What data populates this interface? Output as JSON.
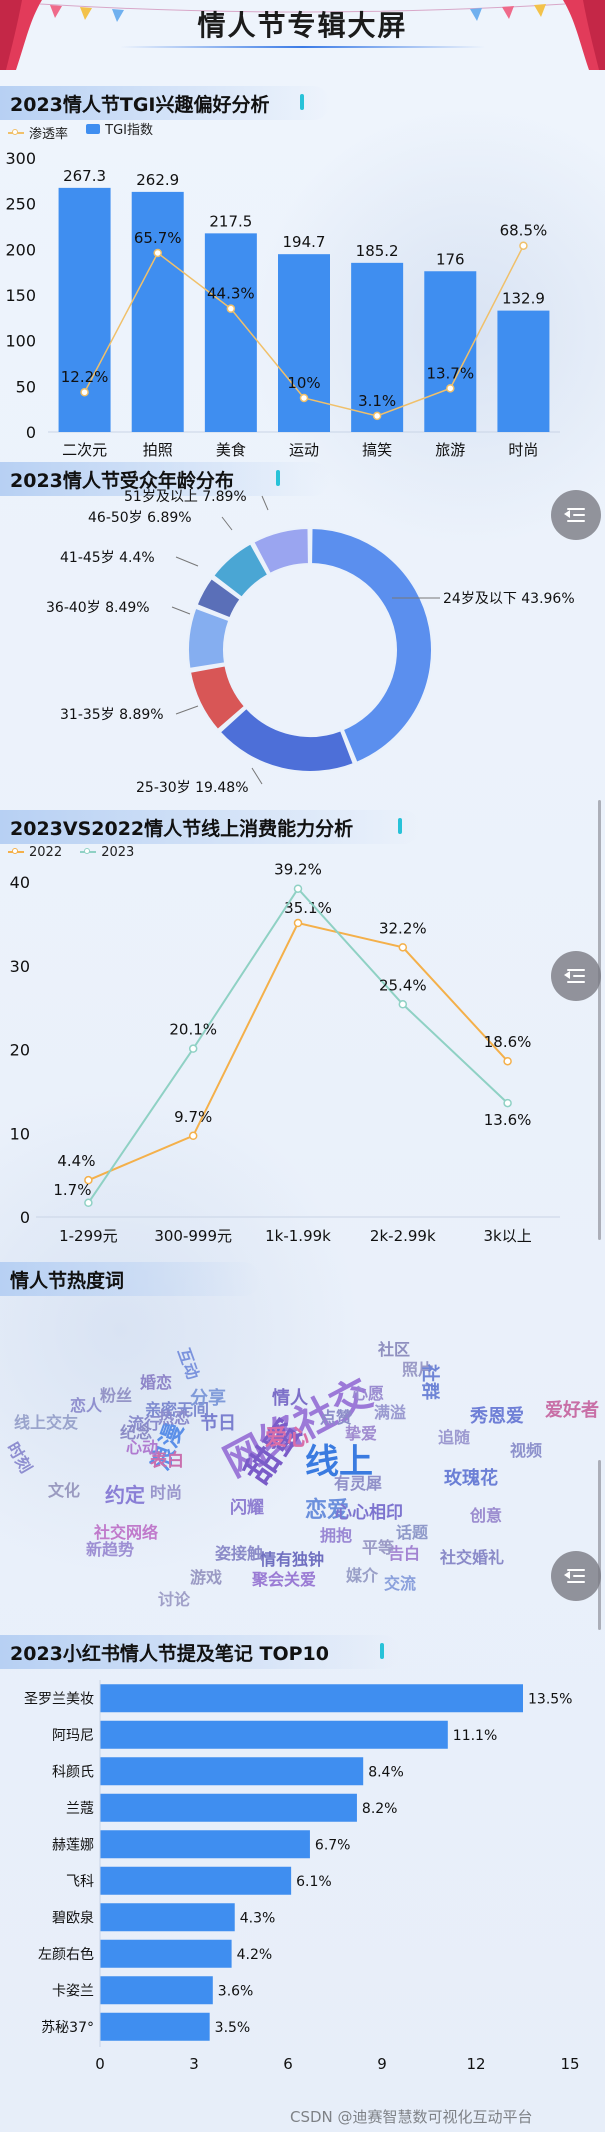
{
  "page": {
    "title": "情人节专辑大屏"
  },
  "sections": {
    "tgi": "2023情人节TGI兴趣偏好分析",
    "age": "2023情人节受众年龄分布",
    "spend": "2023VS2022情人节线上消费能力分析",
    "hot": "情人节热度词",
    "xhs": "2023小红书情人节提及笔记 TOP10"
  },
  "colors": {
    "bar_blue": "#3f8ef0",
    "penetration": "#f0c06a",
    "y2022": "#f4b04a",
    "y2023": "#8fd1c4",
    "ring": [
      "#5b8fee",
      "#4d6fd8",
      "#d85656",
      "#85aef0",
      "#5a6fb8",
      "#4aa6d4",
      "#9aa5f0"
    ]
  },
  "watermark": "CSDN @迪赛智慧数可视化互动平台",
  "chart_data": [
    {
      "type": "bar",
      "title": "2023情人节TGI兴趣偏好分析",
      "categories": [
        "二次元",
        "拍照",
        "美食",
        "运动",
        "搞笑",
        "旅游",
        "时尚"
      ],
      "series": [
        {
          "name": "TGI指数",
          "kind": "bar",
          "values": [
            267.3,
            262.9,
            217.5,
            194.7,
            185.2,
            176,
            132.9
          ],
          "labels": [
            "267.3",
            "262.9",
            "217.5",
            "194.7",
            "185.2",
            "176",
            "132.9"
          ]
        },
        {
          "name": "渗透率",
          "kind": "line",
          "values": [
            12.2,
            65.7,
            44.3,
            10,
            3.1,
            13.7,
            68.5
          ],
          "labels": [
            "12.2%",
            "65.7%",
            "44.3%",
            "10%",
            "3.1%",
            "13.7%",
            "68.5%"
          ]
        }
      ],
      "yticks": [
        "0",
        "50",
        "100",
        "150",
        "200",
        "250",
        "300"
      ],
      "ylim": [
        0,
        300
      ],
      "legend_position": "top-left"
    },
    {
      "type": "pie",
      "title": "2023情人节受众年龄分布",
      "slices": [
        {
          "label": "24岁及以下 43.96%",
          "value": 43.96
        },
        {
          "label": "25-30岁 19.48%",
          "value": 19.48
        },
        {
          "label": "31-35岁 8.89%",
          "value": 8.89
        },
        {
          "label": "36-40岁 8.49%",
          "value": 8.49
        },
        {
          "label": "41-45岁 4.4%",
          "value": 4.4
        },
        {
          "label": "46-50岁 6.89%",
          "value": 6.89
        },
        {
          "label": "51岁及以上 7.89%",
          "value": 7.89
        }
      ]
    },
    {
      "type": "line",
      "title": "2023VS2022情人节线上消费能力分析",
      "categories": [
        "1-299元",
        "300-999元",
        "1k-1.99k",
        "2k-2.99k",
        "3k以上"
      ],
      "series": [
        {
          "name": "2022",
          "values": [
            4.4,
            9.7,
            35.1,
            32.2,
            18.6
          ],
          "labels": [
            "4.4%",
            "9.7%",
            "35.1%",
            "32.2%",
            "18.6%"
          ]
        },
        {
          "name": "2023",
          "values": [
            1.7,
            20.1,
            39.2,
            25.4,
            13.6
          ],
          "labels": [
            "1.7%",
            "20.1%",
            "39.2%",
            "25.4%",
            "13.6%"
          ]
        }
      ],
      "yticks": [
        "0",
        "10",
        "20",
        "30",
        "40"
      ],
      "ylim": [
        0,
        40
      ],
      "legend_position": "top-left"
    },
    {
      "type": "bar",
      "orientation": "horizontal",
      "title": "2023小红书情人节提及笔记 TOP10",
      "categories": [
        "圣罗兰美妆",
        "阿玛尼",
        "科颜氏",
        "兰蔻",
        "赫莲娜",
        "飞科",
        "碧欧泉",
        "左颜右色",
        "卡姿兰",
        "苏秘37°"
      ],
      "values": [
        13.5,
        11.1,
        8.4,
        8.2,
        6.7,
        6.1,
        4.3,
        4.2,
        3.6,
        3.5
      ],
      "labels": [
        "13.5%",
        "11.1%",
        "8.4%",
        "8.2%",
        "6.7%",
        "6.1%",
        "4.3%",
        "4.2%",
        "3.6%",
        "3.5%"
      ],
      "xticks": [
        "0",
        "3",
        "6",
        "9",
        "12",
        "15"
      ],
      "xlim": [
        0,
        15
      ]
    }
  ],
  "wordcloud": [
    {
      "text": "网络社交",
      "color": "#9c79d8"
    },
    {
      "text": "线上",
      "color": "#3a7be0"
    },
    {
      "text": "甜蜜",
      "color": "#7a5cc8"
    },
    {
      "text": "浪漫",
      "color": "#5b8fe8"
    },
    {
      "text": "爱心",
      "color": "#d96ea8"
    },
    {
      "text": "约定",
      "color": "#8a7fd6"
    },
    {
      "text": "恋爱",
      "color": "#6a8fdc"
    },
    {
      "text": "节日",
      "color": "#7a7fcf"
    },
    {
      "text": "社区",
      "color": "#8f8fbf"
    },
    {
      "text": "照片",
      "color": "#9a9ac6"
    },
    {
      "text": "社群",
      "color": "#6e84d6"
    },
    {
      "text": "婚恋",
      "color": "#8f86c9"
    },
    {
      "text": "互动",
      "color": "#7b93dd"
    },
    {
      "text": "流行",
      "color": "#8a8ccc"
    },
    {
      "text": "亲密无间",
      "color": "#7e8bd0"
    },
    {
      "text": "心心相印",
      "color": "#7d74cf"
    },
    {
      "text": "分享",
      "color": "#7f9ad9"
    },
    {
      "text": "玫瑰花",
      "color": "#6b7fd6"
    },
    {
      "text": "视频",
      "color": "#8d92cc"
    },
    {
      "text": "表白",
      "color": "#c96fae"
    },
    {
      "text": "情人",
      "color": "#7c6fc8"
    },
    {
      "text": "闪耀",
      "color": "#8f7fd2"
    },
    {
      "text": "情有独钟",
      "color": "#6f6fc0"
    },
    {
      "text": "拥抱",
      "color": "#9a88d4"
    },
    {
      "text": "告白",
      "color": "#a384d2"
    },
    {
      "text": "媒介",
      "color": "#9aa0c8"
    },
    {
      "text": "交流",
      "color": "#8aa0dc"
    },
    {
      "text": "社交婚礼",
      "color": "#8a8ac8"
    },
    {
      "text": "聚会关爱",
      "color": "#9a7bd4"
    },
    {
      "text": "游戏",
      "color": "#9a9ac4"
    },
    {
      "text": "讨论",
      "color": "#a0a0c8"
    },
    {
      "text": "线上交友",
      "color": "#9aa4cc"
    },
    {
      "text": "新趋势",
      "color": "#9d8fd3"
    },
    {
      "text": "文化",
      "color": "#9a9ac0"
    },
    {
      "text": "社交网络",
      "color": "#c07acb"
    },
    {
      "text": "恋人",
      "color": "#8f8fce"
    },
    {
      "text": "粉丝",
      "color": "#9595c7"
    },
    {
      "text": "纪念",
      "color": "#8c8cc6"
    },
    {
      "text": "创意",
      "color": "#9b8ccf"
    },
    {
      "text": "话题",
      "color": "#8f99c9"
    },
    {
      "text": "秀恩爱",
      "color": "#6f7fd6"
    },
    {
      "text": "爱好者",
      "color": "#c86fa6"
    },
    {
      "text": "时刻",
      "color": "#8e8ed0"
    },
    {
      "text": "有灵犀",
      "color": "#9090c8"
    },
    {
      "text": "平等",
      "color": "#9b9bc6"
    },
    {
      "text": "时尚",
      "color": "#9a96cc"
    },
    {
      "text": "姿接触",
      "color": "#8b8bc8"
    },
    {
      "text": "心动",
      "color": "#b07bd0"
    },
    {
      "text": "热恋",
      "color": "#8c8ccc"
    },
    {
      "text": "心愿",
      "color": "#9a8cd0"
    },
    {
      "text": "满溢",
      "color": "#9a9ad0"
    },
    {
      "text": "点赞",
      "color": "#8c8cc8"
    },
    {
      "text": "追随",
      "color": "#9d9ad0"
    },
    {
      "text": "挚爱",
      "color": "#a08cd0"
    }
  ]
}
